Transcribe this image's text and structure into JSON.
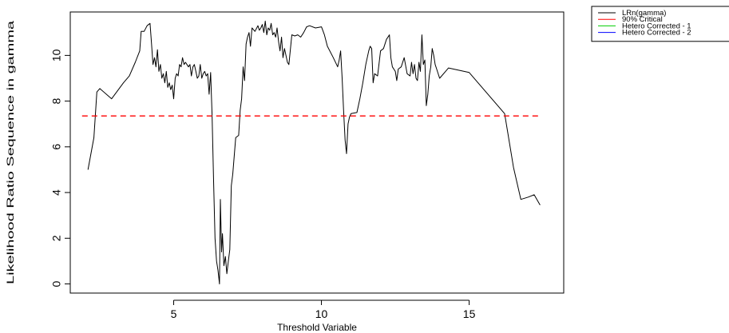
{
  "chart_data": {
    "type": "line",
    "title": "",
    "xlabel": "Threshold Variable",
    "ylabel": "Likelihood Ratio Sequence in gamma",
    "xlim": [
      1.5,
      18.2
    ],
    "ylim": [
      -0.4,
      11.9
    ],
    "x_ticks": [
      5,
      10,
      15
    ],
    "y_ticks": [
      0,
      2,
      4,
      6,
      8,
      10
    ],
    "grid": false,
    "legend_position": "top-right, outside plot",
    "legend": [
      {
        "label": "LRn(gamma)",
        "color": "#000000"
      },
      {
        "label": "90% Critical",
        "color": "#ff0000"
      },
      {
        "label": "Hetero Corrected - 1",
        "color": "#00cd00"
      },
      {
        "label": "Hetero Corrected - 2",
        "color": "#0000ff"
      }
    ],
    "critical_value": 7.35,
    "series": [
      {
        "name": "LRn(gamma)",
        "color": "#000000",
        "points": [
          [
            2.1,
            5.0
          ],
          [
            2.3,
            6.4
          ],
          [
            2.4,
            8.4
          ],
          [
            2.5,
            8.55
          ],
          [
            2.9,
            8.1
          ],
          [
            3.3,
            8.8
          ],
          [
            3.5,
            9.1
          ],
          [
            3.7,
            9.7
          ],
          [
            3.85,
            10.2
          ],
          [
            3.9,
            11.05
          ],
          [
            4.0,
            11.05
          ],
          [
            4.1,
            11.3
          ],
          [
            4.2,
            11.4
          ],
          [
            4.25,
            10.5
          ],
          [
            4.3,
            9.6
          ],
          [
            4.35,
            9.9
          ],
          [
            4.4,
            9.5
          ],
          [
            4.45,
            10.25
          ],
          [
            4.5,
            9.3
          ],
          [
            4.55,
            9.6
          ],
          [
            4.6,
            9.0
          ],
          [
            4.65,
            9.2
          ],
          [
            4.7,
            8.8
          ],
          [
            4.75,
            9.3
          ],
          [
            4.8,
            8.6
          ],
          [
            4.85,
            8.8
          ],
          [
            4.9,
            8.5
          ],
          [
            4.95,
            8.7
          ],
          [
            5.0,
            8.1
          ],
          [
            5.05,
            9.0
          ],
          [
            5.1,
            9.2
          ],
          [
            5.15,
            9.1
          ],
          [
            5.2,
            9.6
          ],
          [
            5.25,
            9.5
          ],
          [
            5.3,
            9.9
          ],
          [
            5.35,
            9.6
          ],
          [
            5.4,
            9.7
          ],
          [
            5.5,
            9.5
          ],
          [
            5.55,
            9.6
          ],
          [
            5.6,
            9.1
          ],
          [
            5.65,
            9.5
          ],
          [
            5.7,
            9.6
          ],
          [
            5.75,
            9.3
          ],
          [
            5.8,
            9.0
          ],
          [
            5.85,
            9.1
          ],
          [
            5.9,
            9.6
          ],
          [
            5.95,
            9.0
          ],
          [
            6.0,
            9.2
          ],
          [
            6.05,
            9.3
          ],
          [
            6.1,
            9.1
          ],
          [
            6.15,
            9.2
          ],
          [
            6.2,
            8.3
          ],
          [
            6.25,
            9.25
          ],
          [
            6.3,
            7.4
          ],
          [
            6.35,
            4.5
          ],
          [
            6.4,
            2.0
          ],
          [
            6.45,
            1.0
          ],
          [
            6.5,
            0.6
          ],
          [
            6.55,
            0.0
          ],
          [
            6.58,
            3.7
          ],
          [
            6.62,
            1.4
          ],
          [
            6.65,
            2.2
          ],
          [
            6.7,
            0.8
          ],
          [
            6.75,
            1.2
          ],
          [
            6.8,
            0.45
          ],
          [
            6.85,
            1.0
          ],
          [
            6.9,
            1.5
          ],
          [
            6.95,
            4.3
          ],
          [
            7.0,
            4.8
          ],
          [
            7.1,
            6.4
          ],
          [
            7.2,
            6.5
          ],
          [
            7.25,
            7.6
          ],
          [
            7.3,
            8.1
          ],
          [
            7.35,
            9.5
          ],
          [
            7.4,
            8.9
          ],
          [
            7.45,
            10.5
          ],
          [
            7.5,
            10.8
          ],
          [
            7.55,
            11.0
          ],
          [
            7.6,
            10.4
          ],
          [
            7.65,
            11.2
          ],
          [
            7.75,
            11.05
          ],
          [
            7.85,
            11.3
          ],
          [
            7.9,
            11.1
          ],
          [
            7.95,
            11.2
          ],
          [
            8.0,
            11.35
          ],
          [
            8.05,
            11.0
          ],
          [
            8.1,
            11.5
          ],
          [
            8.15,
            10.9
          ],
          [
            8.2,
            11.2
          ],
          [
            8.25,
            11.1
          ],
          [
            8.3,
            11.4
          ],
          [
            8.35,
            10.9
          ],
          [
            8.4,
            11.0
          ],
          [
            8.45,
            10.8
          ],
          [
            8.5,
            11.2
          ],
          [
            8.55,
            10.6
          ],
          [
            8.6,
            10.2
          ],
          [
            8.65,
            10.8
          ],
          [
            8.7,
            9.9
          ],
          [
            8.75,
            10.3
          ],
          [
            8.85,
            9.7
          ],
          [
            8.9,
            9.6
          ],
          [
            9.0,
            10.9
          ],
          [
            9.1,
            10.85
          ],
          [
            9.2,
            10.9
          ],
          [
            9.3,
            10.8
          ],
          [
            9.4,
            11.0
          ],
          [
            9.5,
            11.25
          ],
          [
            9.6,
            11.3
          ],
          [
            9.8,
            11.2
          ],
          [
            10.0,
            11.25
          ],
          [
            10.1,
            10.9
          ],
          [
            10.2,
            10.4
          ],
          [
            10.4,
            9.9
          ],
          [
            10.55,
            9.5
          ],
          [
            10.6,
            9.8
          ],
          [
            10.65,
            10.2
          ],
          [
            10.7,
            9.0
          ],
          [
            10.75,
            7.6
          ],
          [
            10.8,
            6.3
          ],
          [
            10.85,
            5.7
          ],
          [
            10.9,
            7.0
          ],
          [
            10.95,
            7.3
          ],
          [
            11.0,
            7.45
          ],
          [
            11.2,
            7.5
          ],
          [
            11.3,
            8.1
          ],
          [
            11.4,
            8.8
          ],
          [
            11.5,
            9.6
          ],
          [
            11.6,
            10.2
          ],
          [
            11.65,
            10.4
          ],
          [
            11.7,
            10.3
          ],
          [
            11.75,
            8.8
          ],
          [
            11.8,
            9.2
          ],
          [
            11.9,
            9.1
          ],
          [
            12.0,
            10.2
          ],
          [
            12.1,
            10.3
          ],
          [
            12.2,
            10.7
          ],
          [
            12.3,
            10.9
          ],
          [
            12.35,
            9.9
          ],
          [
            12.4,
            9.5
          ],
          [
            12.5,
            9.3
          ],
          [
            12.55,
            8.9
          ],
          [
            12.6,
            9.4
          ],
          [
            12.7,
            9.5
          ],
          [
            12.8,
            9.9
          ],
          [
            12.9,
            9.2
          ],
          [
            13.0,
            9.1
          ],
          [
            13.05,
            9.7
          ],
          [
            13.1,
            9.2
          ],
          [
            13.15,
            9.6
          ],
          [
            13.2,
            9.0
          ],
          [
            13.25,
            8.9
          ],
          [
            13.3,
            9.7
          ],
          [
            13.35,
            9.3
          ],
          [
            13.4,
            10.9
          ],
          [
            13.45,
            9.6
          ],
          [
            13.5,
            9.8
          ],
          [
            13.55,
            7.8
          ],
          [
            13.6,
            8.3
          ],
          [
            13.65,
            9.1
          ],
          [
            13.7,
            9.5
          ],
          [
            13.75,
            10.3
          ],
          [
            13.8,
            10.0
          ],
          [
            13.85,
            9.6
          ],
          [
            13.9,
            9.4
          ],
          [
            14.0,
            9.0
          ],
          [
            14.2,
            9.3
          ],
          [
            14.3,
            9.45
          ],
          [
            15.0,
            9.25
          ],
          [
            16.2,
            7.45
          ],
          [
            16.5,
            5.1
          ],
          [
            16.75,
            3.7
          ],
          [
            17.0,
            3.8
          ],
          [
            17.2,
            3.9
          ],
          [
            17.4,
            3.45
          ]
        ]
      },
      {
        "name": "90% Critical",
        "color": "#ff0000",
        "dashed": true,
        "points": [
          [
            1.9,
            7.35
          ],
          [
            17.45,
            7.35
          ]
        ]
      }
    ]
  }
}
